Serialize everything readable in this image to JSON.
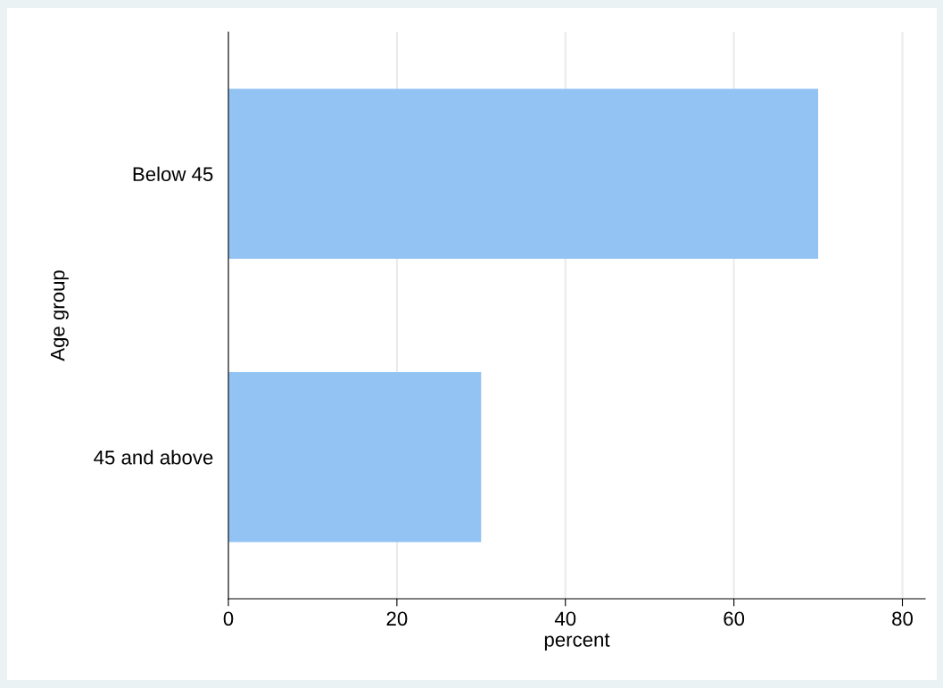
{
  "chart_data": {
    "type": "bar",
    "orientation": "horizontal",
    "categories": [
      "Below 45",
      "45 and above"
    ],
    "values": [
      70.0,
      30.0
    ],
    "color": "#92c3f3",
    "xlim": [
      0,
      82.7
    ],
    "xticks": [
      0,
      20,
      40,
      60,
      80
    ],
    "xlabel": "percent",
    "ylabel": "Age group",
    "grid": "x",
    "legend": false
  }
}
